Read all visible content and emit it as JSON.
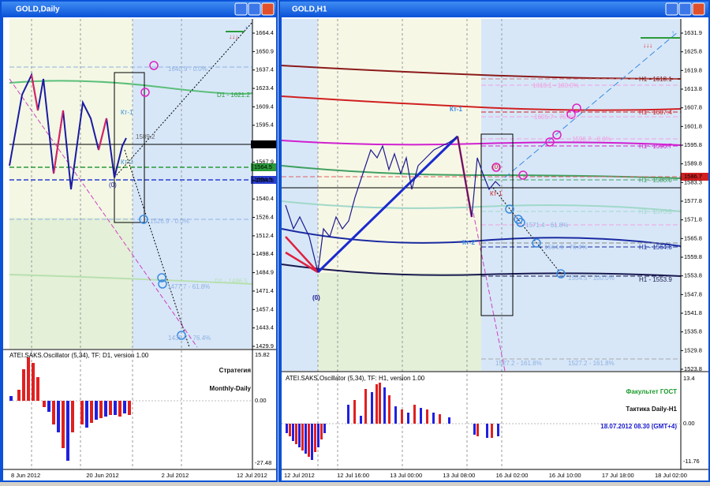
{
  "windows": [
    {
      "title": "GOLD,Daily",
      "prices": [
        "1664.4",
        "1650.9",
        "1637.4",
        "1623.4",
        "1609.4",
        "1595.4",
        "1581.3",
        "1567.9",
        "1554.5",
        "1540.4",
        "1526.4",
        "1512.4",
        "1498.4",
        "1484.9",
        "1471.4",
        "1457.4",
        "1443.4",
        "1429.9"
      ],
      "marked_prices": [
        "1581.3",
        "1564.5",
        "1554.5"
      ],
      "annotations": [
        "1640.9 - 0.0%",
        "D1 - 1621.2",
        "Кт-1",
        "1589.2",
        "Кт-2",
        "(0)",
        "1526.9 - 0.0%",
        "1477.7 - 61.8%",
        "D1 - 1486.5",
        "1435.7 - 76.4%"
      ],
      "oscillator": {
        "title": "ATEI.SAKS.Oscillator (5,34), TF: D1, version 1.00",
        "levels": [
          "15.82",
          "0.00",
          "-27.48"
        ]
      },
      "caption": [
        "Стратегия",
        "Monthly-Daily"
      ],
      "times": [
        "8 Jun 2012",
        "20 Jun 2012",
        "2 Jul 2012",
        "12 Jul 2012"
      ]
    },
    {
      "title": "GOLD,H1",
      "prices": [
        "1631.9",
        "1625.8",
        "1619.8",
        "1613.8",
        "1607.8",
        "1601.8",
        "1595.8",
        "1589.8",
        "1583.3",
        "1577.8",
        "1571.8",
        "1565.8",
        "1559.8",
        "1553.8",
        "1547.8",
        "1541.8",
        "1535.8",
        "1529.8",
        "1523.8"
      ],
      "marked_prices": [
        "1586.7"
      ],
      "annotations": [
        "H1 - 1618.1",
        "1618.1 - 100.0%",
        "Кт-1",
        "H1 - 1607.4",
        "1605.7 - 76.4%",
        "1598.7 - 0.0%",
        "H1 - 1596.7",
        "H1 - 1586.0",
        "(0)",
        "Кт-1",
        "H1 - 1575.3",
        "1571.4 - 61.8%",
        "Кт-2",
        "1564.9 - 76.4%",
        "H1 - 1564.6",
        "1554.5 - 100.0%",
        "H1 - 1553.9",
        "(0)",
        "1527.2 - 161.8%",
        "1527.2 - 161.8%"
      ],
      "oscillator": {
        "title": "ATEI.SAKS.Oscillator (5,34), TF: H1, version 1.00",
        "levels": [
          "13.4",
          "0.00",
          "-11.76"
        ]
      },
      "caption": [
        "Факультет ГОСТ",
        "Тактика Daily-H1",
        "18.07.2012  08.30 (GMT+4)"
      ],
      "times": [
        "12 Jul 2012",
        "12 Jul 16:00",
        "13 Jul 00:00",
        "13 Jul 08:00",
        "16 Jul 02:00",
        "16 Jul 10:00",
        "17 Jul 18:00",
        "18 Jul 02:00"
      ]
    }
  ]
}
